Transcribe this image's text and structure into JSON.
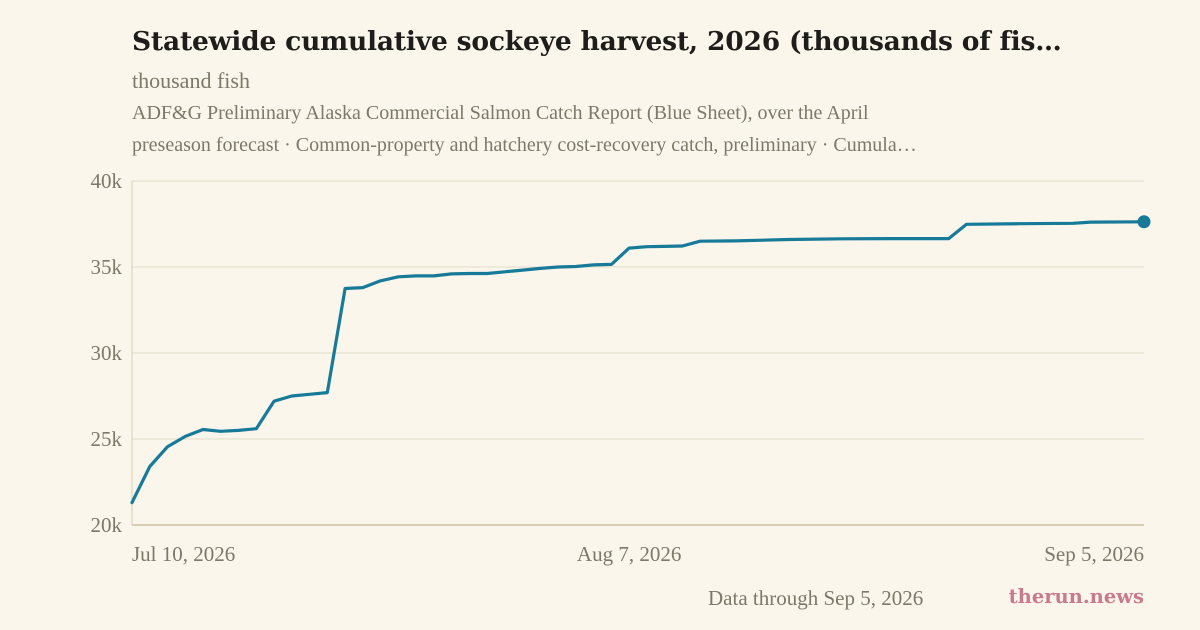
{
  "header": {
    "title": "Statewide cumulative sockeye harvest, 2026 (thousands of fis…",
    "subtitle": "thousand fish",
    "source_line_1": "ADF&G Preliminary Alaska Commercial Salmon Catch Report (Blue Sheet), over the April",
    "source_line_2": "preseason forecast · Common-property and hatchery cost-recovery catch, preliminary · Cumula…"
  },
  "footer": {
    "note": "Data through Sep 5, 2026",
    "brand": "therun.news"
  },
  "colors": {
    "background": "#faf6ec",
    "line": "#177a99",
    "grid": "#e3ddc9",
    "axis_text": "#7d7868",
    "brand": "#c97b8e"
  },
  "chart_data": {
    "type": "line",
    "title": "Statewide cumulative sockeye harvest, 2026 (thousands of fis…",
    "ylabel": "thousand fish",
    "xlabel": "",
    "ylim": [
      20000,
      40000
    ],
    "yticks": [
      20000,
      25000,
      30000,
      35000,
      40000
    ],
    "ytick_labels": [
      "20k",
      "25k",
      "30k",
      "35k",
      "40k"
    ],
    "xlim": [
      "2026-07-10",
      "2026-09-05"
    ],
    "xticks": [
      "2026-07-10",
      "2026-08-07",
      "2026-09-05"
    ],
    "xtick_labels": [
      "Jul 10, 2026",
      "Aug 7, 2026",
      "Sep 5, 2026"
    ],
    "grid": true,
    "end_marker": true,
    "series": [
      {
        "x": [
          "2026-07-10",
          "2026-07-11",
          "2026-07-12",
          "2026-07-13",
          "2026-07-14",
          "2026-07-15",
          "2026-07-16",
          "2026-07-17",
          "2026-07-18",
          "2026-07-19",
          "2026-07-20",
          "2026-07-21",
          "2026-07-22",
          "2026-07-23",
          "2026-07-24",
          "2026-07-25",
          "2026-07-26",
          "2026-07-27",
          "2026-07-28",
          "2026-07-29",
          "2026-07-30",
          "2026-07-31",
          "2026-08-01",
          "2026-08-02",
          "2026-08-03",
          "2026-08-04",
          "2026-08-05",
          "2026-08-06",
          "2026-08-07",
          "2026-08-08",
          "2026-08-09",
          "2026-08-10",
          "2026-08-11",
          "2026-08-13",
          "2026-08-16",
          "2026-08-19",
          "2026-08-22",
          "2026-08-25",
          "2026-08-26",
          "2026-08-29",
          "2026-09-01",
          "2026-09-02",
          "2026-09-05"
        ],
        "values": [
          21300,
          23400,
          24550,
          25150,
          25550,
          25450,
          25500,
          25600,
          27200,
          27500,
          27600,
          27700,
          33750,
          33800,
          34200,
          34430,
          34480,
          34480,
          34600,
          34620,
          34620,
          34720,
          34820,
          34920,
          35000,
          35030,
          35120,
          35150,
          36100,
          36180,
          36200,
          36220,
          36500,
          36520,
          36600,
          36640,
          36650,
          36650,
          37480,
          37520,
          37540,
          37610,
          37630
        ]
      }
    ]
  }
}
